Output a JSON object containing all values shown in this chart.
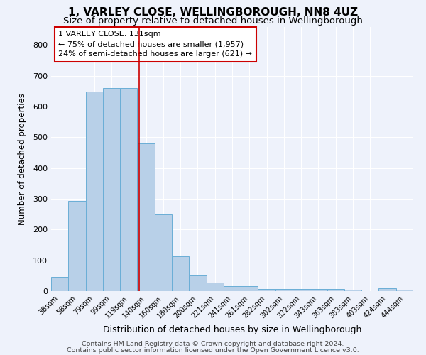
{
  "title_line1": "1, VARLEY CLOSE, WELLINGBOROUGH, NN8 4UZ",
  "title_line2": "Size of property relative to detached houses in Wellingborough",
  "xlabel": "Distribution of detached houses by size in Wellingborough",
  "ylabel": "Number of detached properties",
  "categories": [
    "38sqm",
    "58sqm",
    "79sqm",
    "99sqm",
    "119sqm",
    "140sqm",
    "160sqm",
    "180sqm",
    "200sqm",
    "221sqm",
    "241sqm",
    "261sqm",
    "282sqm",
    "302sqm",
    "322sqm",
    "343sqm",
    "363sqm",
    "383sqm",
    "403sqm",
    "424sqm",
    "444sqm"
  ],
  "values": [
    46,
    293,
    648,
    660,
    660,
    480,
    250,
    113,
    51,
    27,
    16,
    16,
    7,
    6,
    8,
    8,
    8,
    4,
    0,
    10,
    4
  ],
  "bar_color": "#b8d0e8",
  "bar_edge_color": "#6aaed6",
  "background_color": "#eef2fb",
  "grid_color": "#ffffff",
  "vline_x": 4.6,
  "vline_color": "#cc0000",
  "annotation_text": "1 VARLEY CLOSE: 131sqm\n← 75% of detached houses are smaller (1,957)\n24% of semi-detached houses are larger (621) →",
  "annotation_box_facecolor": "#ffffff",
  "annotation_box_edgecolor": "#cc0000",
  "ylim": [
    0,
    860
  ],
  "yticks": [
    0,
    100,
    200,
    300,
    400,
    500,
    600,
    700,
    800
  ],
  "footnote_line1": "Contains HM Land Registry data © Crown copyright and database right 2024.",
  "footnote_line2": "Contains public sector information licensed under the Open Government Licence v3.0.",
  "title_fontsize": 11,
  "subtitle_fontsize": 9.5,
  "annotation_fontsize": 8,
  "footnote_fontsize": 6.8,
  "xlabel_fontsize": 9,
  "ylabel_fontsize": 8.5,
  "xtick_fontsize": 7,
  "ytick_fontsize": 8
}
